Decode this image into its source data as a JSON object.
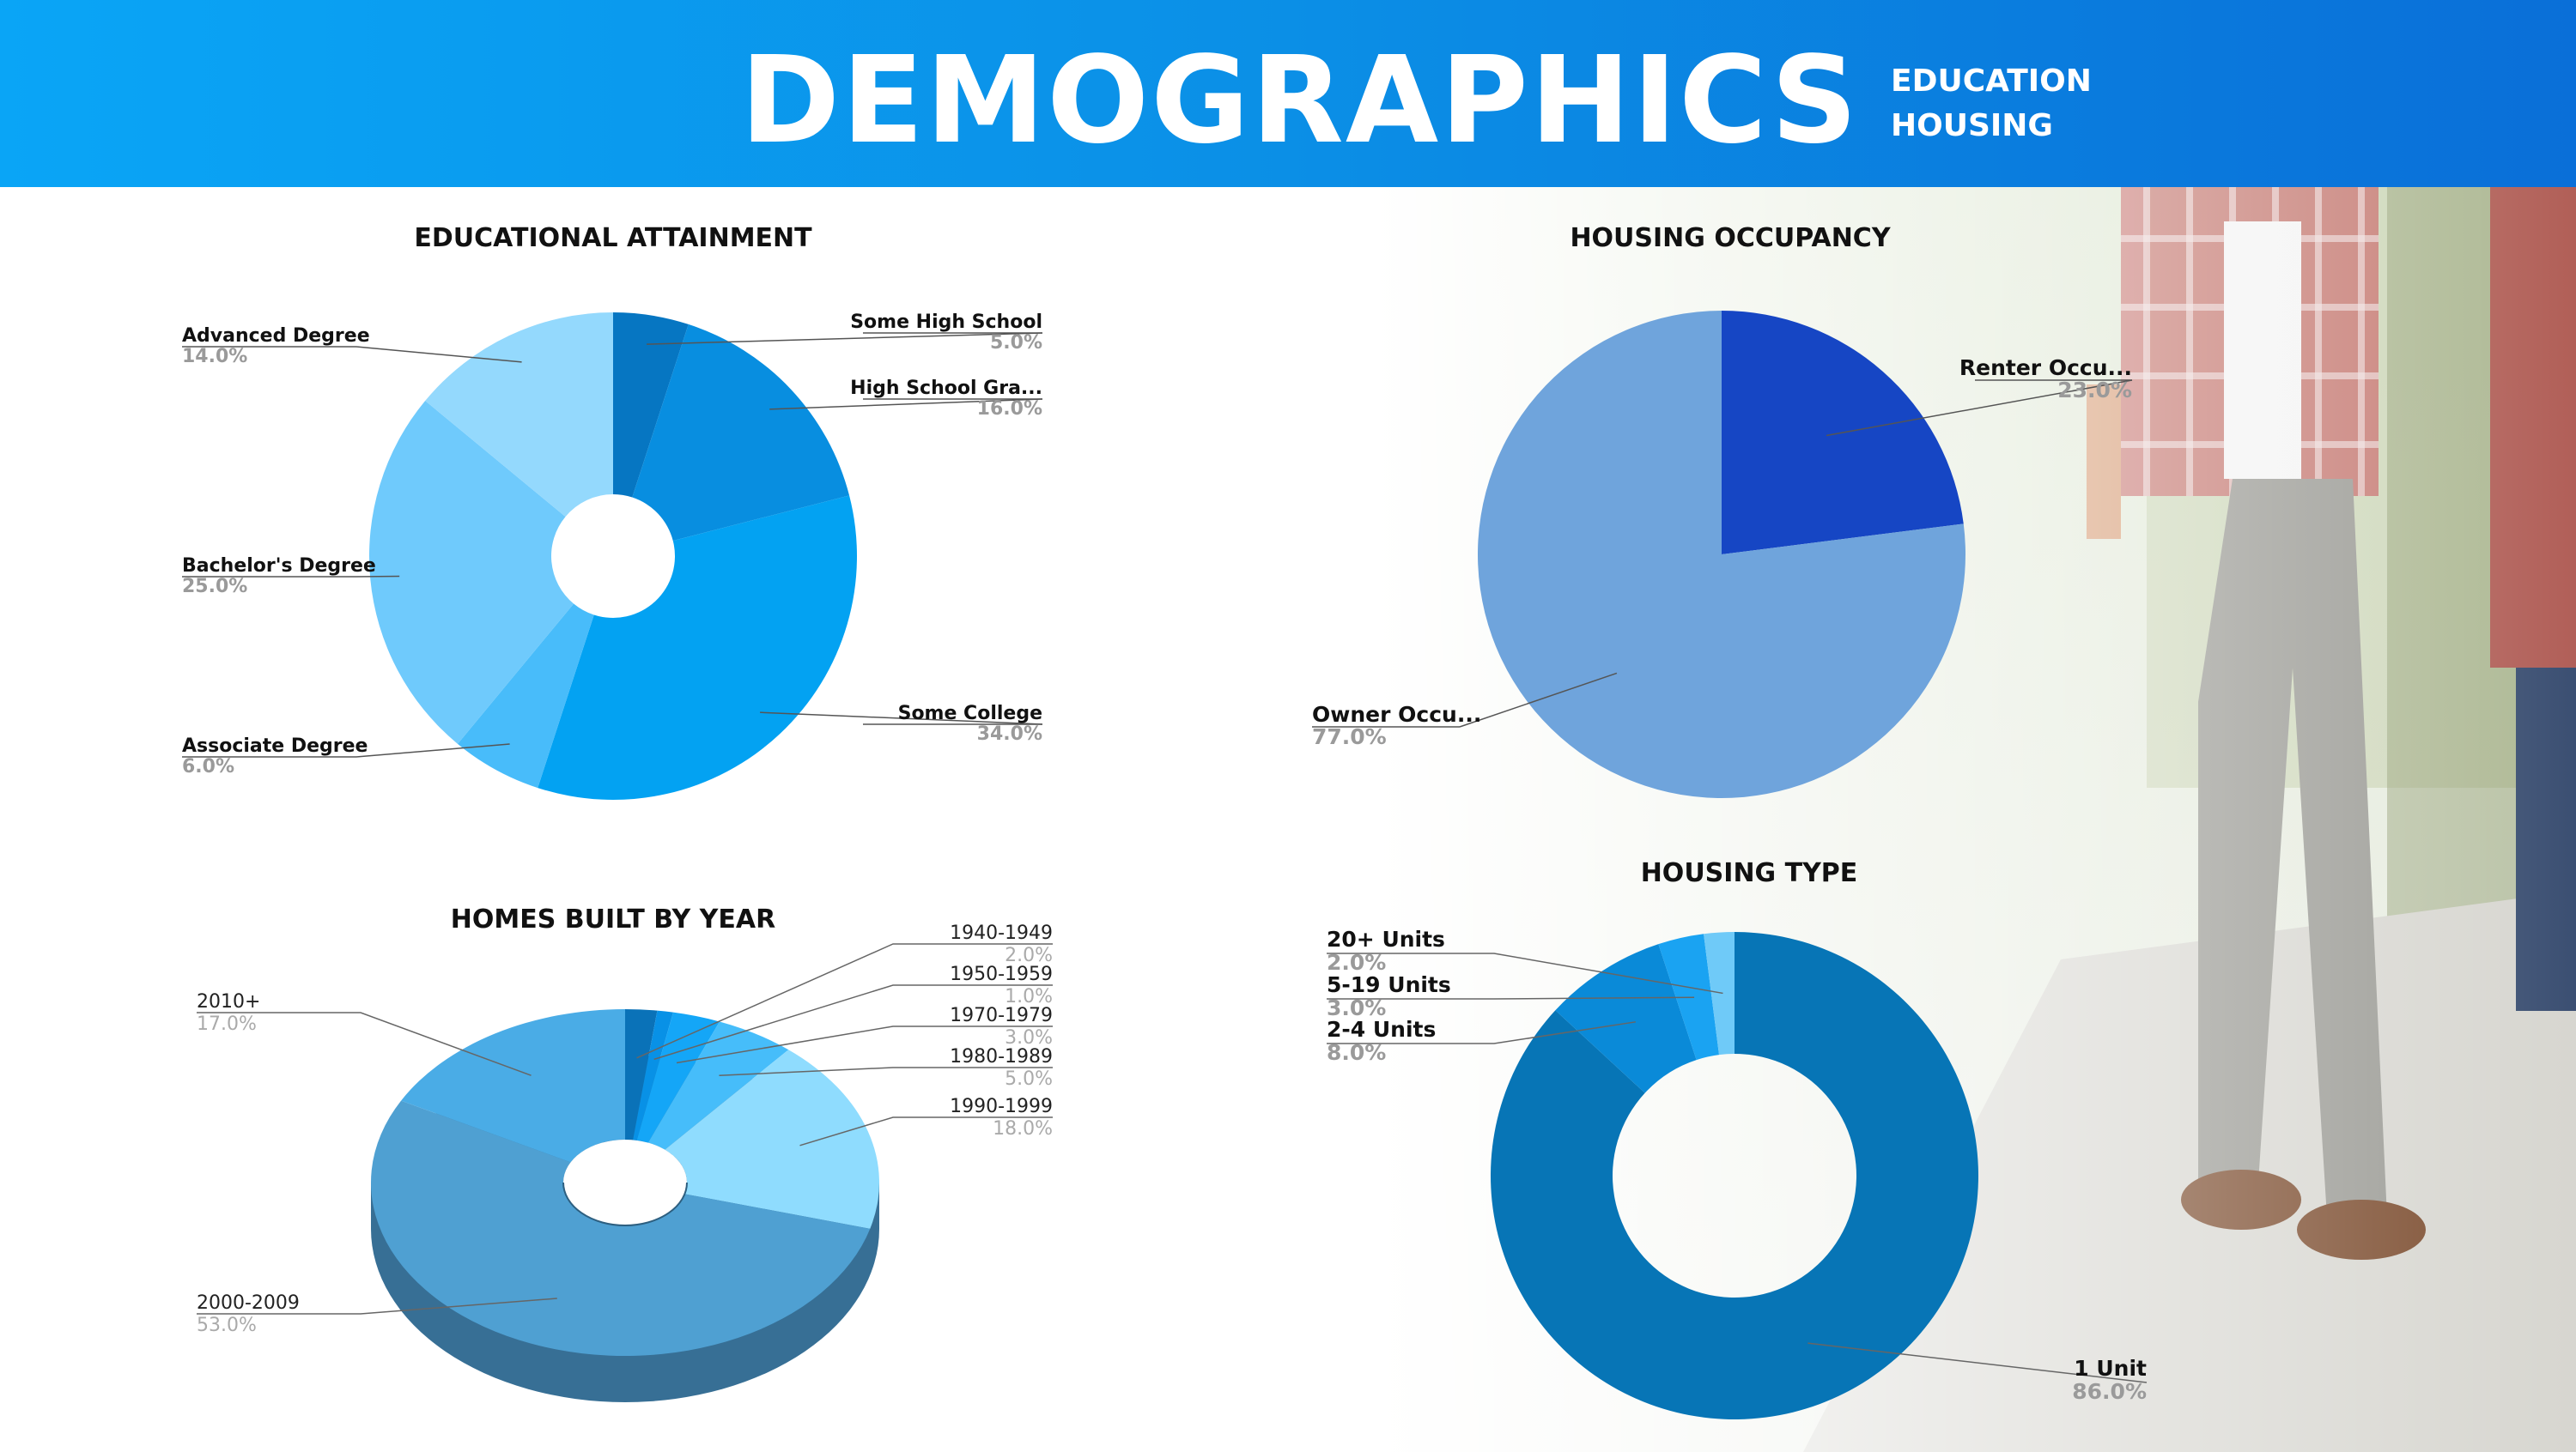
{
  "header": {
    "title": "DEMOGRAPHICS",
    "nav": [
      "EDUCATION",
      "HOUSING"
    ]
  },
  "colors": {
    "header_start": "#0aa5f6",
    "header_end": "#0a6fd8"
  },
  "chart_data": [
    {
      "type": "pie",
      "title": "EDUCATIONAL ATTAINMENT",
      "donut": true,
      "categories": [
        "Some High School",
        "High School Gra...",
        "Some College",
        "Associate Degree",
        "Bachelor's Degree",
        "Advanced Degree"
      ],
      "values": [
        5.0,
        16.0,
        34.0,
        6.0,
        25.0,
        14.0
      ],
      "labels": [
        "5.0%",
        "16.0%",
        "34.0%",
        "6.0%",
        "25.0%",
        "14.0%"
      ],
      "colors": [
        "#0676c2",
        "#088ee0",
        "#03a2f2",
        "#48bcfa",
        "#6fcafc",
        "#94d9fd"
      ]
    },
    {
      "type": "pie",
      "title": "HOUSING OCCUPANCY",
      "categories": [
        "Renter Occu...",
        "Owner Occu..."
      ],
      "values": [
        23.0,
        77.0
      ],
      "labels": [
        "23.0%",
        "77.0%"
      ],
      "colors": [
        "#1646c4",
        "#6fa4dc"
      ]
    },
    {
      "type": "pie",
      "title": "HOMES BUILT BY YEAR",
      "donut": true,
      "three_d": true,
      "categories": [
        "1940-1949",
        "1950-1959",
        "1970-1979",
        "1980-1989",
        "1990-1999",
        "2000-2009",
        "2010+"
      ],
      "values": [
        2.0,
        1.0,
        3.0,
        5.0,
        18.0,
        53.0,
        17.0
      ],
      "labels": [
        "2.0%",
        "1.0%",
        "3.0%",
        "5.0%",
        "18.0%",
        "53.0%",
        "17.0%"
      ],
      "colors": [
        "#0a72b8",
        "#0891e6",
        "#14a6f7",
        "#46bdfa",
        "#8fdcfe",
        "#4fa0d2",
        "#4aace6"
      ]
    },
    {
      "type": "pie",
      "title": "HOUSING TYPE",
      "donut": true,
      "categories": [
        "1 Unit",
        "2-4 Units",
        "5-19 Units",
        "20+ Units"
      ],
      "values": [
        86.0,
        8.0,
        3.0,
        2.0
      ],
      "labels": [
        "86.0%",
        "8.0%",
        "3.0%",
        "2.0%"
      ],
      "colors": [
        "#0775b6",
        "#0a8ad8",
        "#1aa3f2",
        "#6fcaf8"
      ]
    }
  ]
}
